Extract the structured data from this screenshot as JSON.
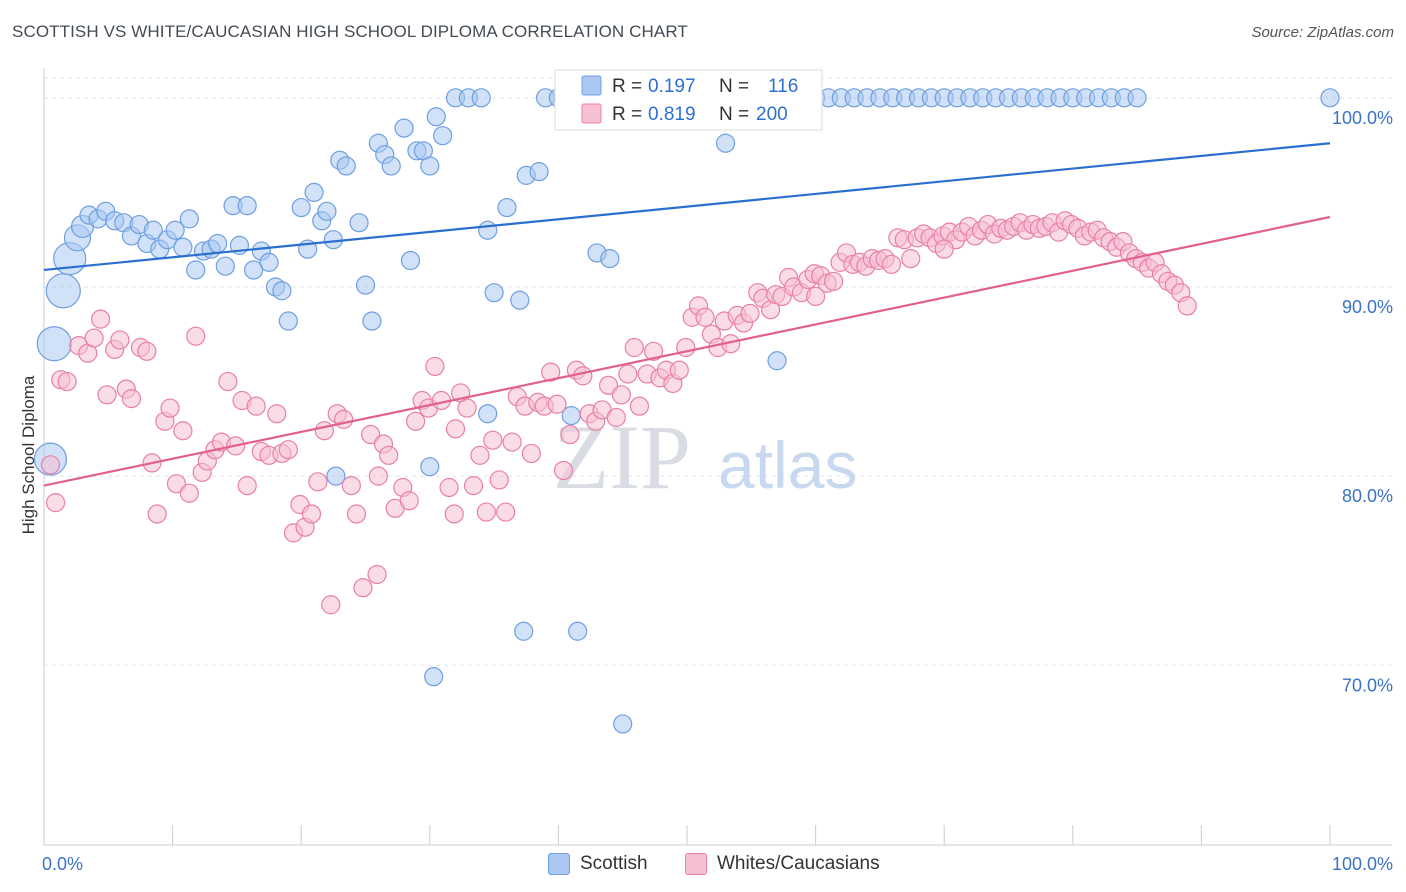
{
  "header": {
    "title": "SCOTTISH VS WHITE/CAUCASIAN HIGH SCHOOL DIPLOMA CORRELATION CHART",
    "source": "Source: ZipAtlas.com"
  },
  "watermark": {
    "zip": "ZIP",
    "atlas": "atlas"
  },
  "legend": {
    "r_label": "R =",
    "n_label": "N =",
    "rows": [
      {
        "r": "0.197",
        "n": "116"
      },
      {
        "r": "0.819",
        "n": "200"
      }
    ]
  },
  "chart_data": {
    "type": "scatter",
    "title": "SCOTTISH VS WHITE/CAUCASIAN HIGH SCHOOL DIPLOMA CORRELATION CHART",
    "ylabel": "High School Diploma",
    "xlabel": "",
    "xlim": [
      0,
      100
    ],
    "ylim": [
      60.5,
      102
    ],
    "x_tick_labels": [
      "0.0%",
      "100.0%"
    ],
    "y_ticks": [
      {
        "value": 100,
        "label": "100.0%"
      },
      {
        "value": 90,
        "label": "90.0%"
      },
      {
        "value": 80,
        "label": "80.0%"
      },
      {
        "value": 70,
        "label": "70.0%"
      }
    ],
    "grid": true,
    "legend_position": "top-center",
    "series": [
      {
        "name": "Scottish",
        "color": "#6f9fe0",
        "fill": "#aac8f3",
        "trend_color": "#2a6fcf",
        "trend": {
          "x": [
            0,
            100
          ],
          "y": [
            90.9,
            97.6
          ]
        },
        "points": [
          [
            0.5,
            80.9
          ],
          [
            0.8,
            87.0
          ],
          [
            1.5,
            89.8
          ],
          [
            2.0,
            91.5
          ],
          [
            2.6,
            92.6
          ],
          [
            3.0,
            93.2
          ],
          [
            3.5,
            93.8
          ],
          [
            4.2,
            93.6
          ],
          [
            4.8,
            94.0
          ],
          [
            5.5,
            93.5
          ],
          [
            6.2,
            93.4
          ],
          [
            6.8,
            92.7
          ],
          [
            7.4,
            93.3
          ],
          [
            8.0,
            92.3
          ],
          [
            8.5,
            93.0
          ],
          [
            9.0,
            92.0
          ],
          [
            9.6,
            92.5
          ],
          [
            10.2,
            93.0
          ],
          [
            10.8,
            92.1
          ],
          [
            11.3,
            93.6
          ],
          [
            11.8,
            90.9
          ],
          [
            12.4,
            91.9
          ],
          [
            13.0,
            92.0
          ],
          [
            13.5,
            92.3
          ],
          [
            14.1,
            91.1
          ],
          [
            14.7,
            94.3
          ],
          [
            15.2,
            92.2
          ],
          [
            15.8,
            94.3
          ],
          [
            16.3,
            90.9
          ],
          [
            16.9,
            91.9
          ],
          [
            17.5,
            91.3
          ],
          [
            18.0,
            90.0
          ],
          [
            18.5,
            89.8
          ],
          [
            19.0,
            88.2
          ],
          [
            20.0,
            94.2
          ],
          [
            20.5,
            92.0
          ],
          [
            21.0,
            95.0
          ],
          [
            21.6,
            93.5
          ],
          [
            22.0,
            94.0
          ],
          [
            22.5,
            92.5
          ],
          [
            23.0,
            96.7
          ],
          [
            23.5,
            96.4
          ],
          [
            24.5,
            93.4
          ],
          [
            25.0,
            90.1
          ],
          [
            25.5,
            88.2
          ],
          [
            26.0,
            97.6
          ],
          [
            26.5,
            97.0
          ],
          [
            27.0,
            96.4
          ],
          [
            28.0,
            98.4
          ],
          [
            28.5,
            91.4
          ],
          [
            29.0,
            97.2
          ],
          [
            29.5,
            97.2
          ],
          [
            30.0,
            96.4
          ],
          [
            30.5,
            99.0
          ],
          [
            31.0,
            98.0
          ],
          [
            32.0,
            100.0
          ],
          [
            33.0,
            100.0
          ],
          [
            34.0,
            100.0
          ],
          [
            34.5,
            93.0
          ],
          [
            35.0,
            89.7
          ],
          [
            36.0,
            94.2
          ],
          [
            37.0,
            89.3
          ],
          [
            37.5,
            95.9
          ],
          [
            38.5,
            96.1
          ],
          [
            39.0,
            100.0
          ],
          [
            40.0,
            100.0
          ],
          [
            41.0,
            100.0
          ],
          [
            43.0,
            91.8
          ],
          [
            44.0,
            91.5
          ],
          [
            45.0,
            100.0
          ],
          [
            47.0,
            100.0
          ],
          [
            48.0,
            100.0
          ],
          [
            49.0,
            100.0
          ],
          [
            50.0,
            100.0
          ],
          [
            51.0,
            100.0
          ],
          [
            52.0,
            100.0
          ],
          [
            53.0,
            97.6
          ],
          [
            54.0,
            100.0
          ],
          [
            55.0,
            100.0
          ],
          [
            56.0,
            100.0
          ],
          [
            57.0,
            86.1
          ],
          [
            58.0,
            100.0
          ],
          [
            59.0,
            100.0
          ],
          [
            60.0,
            100.0
          ],
          [
            61.0,
            100.0
          ],
          [
            62.0,
            100.0
          ],
          [
            63.0,
            100.0
          ],
          [
            64.0,
            100.0
          ],
          [
            65.0,
            100.0
          ],
          [
            66.0,
            100.0
          ],
          [
            67.0,
            100.0
          ],
          [
            68.0,
            100.0
          ],
          [
            69.0,
            100.0
          ],
          [
            70.0,
            100.0
          ],
          [
            71.0,
            100.0
          ],
          [
            72.0,
            100.0
          ],
          [
            73.0,
            100.0
          ],
          [
            74.0,
            100.0
          ],
          [
            75.0,
            100.0
          ],
          [
            76.0,
            100.0
          ],
          [
            77.0,
            100.0
          ],
          [
            78.0,
            100.0
          ],
          [
            79.0,
            100.0
          ],
          [
            80.0,
            100.0
          ],
          [
            81.0,
            100.0
          ],
          [
            82.0,
            100.0
          ],
          [
            83.0,
            100.0
          ],
          [
            84.0,
            100.0
          ],
          [
            85.0,
            100.0
          ],
          [
            100.0,
            100.0
          ],
          [
            30.0,
            80.5
          ],
          [
            22.7,
            80.0
          ],
          [
            34.5,
            83.3
          ],
          [
            41.0,
            83.2
          ],
          [
            41.5,
            71.8
          ],
          [
            37.3,
            71.8
          ],
          [
            30.3,
            69.4
          ],
          [
            45.0,
            66.9
          ]
        ]
      },
      {
        "name": "Whites/Caucasians",
        "color": "#e97fa6",
        "fill": "#f6c0d3",
        "trend_color": "#e2608f",
        "trend": {
          "x": [
            0,
            100
          ],
          "y": [
            79.5,
            93.7
          ]
        },
        "points": [
          [
            0.5,
            80.6
          ],
          [
            0.9,
            78.6
          ],
          [
            1.3,
            85.1
          ],
          [
            1.8,
            85.0
          ],
          [
            2.7,
            86.9
          ],
          [
            3.4,
            86.5
          ],
          [
            3.9,
            87.3
          ],
          [
            4.4,
            88.3
          ],
          [
            4.9,
            84.3
          ],
          [
            5.5,
            86.7
          ],
          [
            5.9,
            87.2
          ],
          [
            6.4,
            84.6
          ],
          [
            6.8,
            84.1
          ],
          [
            7.5,
            86.8
          ],
          [
            8.0,
            86.6
          ],
          [
            8.4,
            80.7
          ],
          [
            8.8,
            78.0
          ],
          [
            9.4,
            82.9
          ],
          [
            9.8,
            83.6
          ],
          [
            10.3,
            79.6
          ],
          [
            10.8,
            82.4
          ],
          [
            11.3,
            79.1
          ],
          [
            11.8,
            87.4
          ],
          [
            12.3,
            80.2
          ],
          [
            12.7,
            80.8
          ],
          [
            13.3,
            81.4
          ],
          [
            13.8,
            81.8
          ],
          [
            14.3,
            85.0
          ],
          [
            14.9,
            81.6
          ],
          [
            15.4,
            84.0
          ],
          [
            15.8,
            79.5
          ],
          [
            16.5,
            83.7
          ],
          [
            16.9,
            81.3
          ],
          [
            17.5,
            81.1
          ],
          [
            18.1,
            83.3
          ],
          [
            18.5,
            81.2
          ],
          [
            19.0,
            81.4
          ],
          [
            19.4,
            77.0
          ],
          [
            19.9,
            78.5
          ],
          [
            20.3,
            77.3
          ],
          [
            20.8,
            78.0
          ],
          [
            21.3,
            79.7
          ],
          [
            21.8,
            82.4
          ],
          [
            22.3,
            73.2
          ],
          [
            22.8,
            83.3
          ],
          [
            23.3,
            83.0
          ],
          [
            23.9,
            79.5
          ],
          [
            24.3,
            78.0
          ],
          [
            24.8,
            74.1
          ],
          [
            25.4,
            82.2
          ],
          [
            25.9,
            74.8
          ],
          [
            26.4,
            81.7
          ],
          [
            26.8,
            81.1
          ],
          [
            27.3,
            78.3
          ],
          [
            27.9,
            79.4
          ],
          [
            28.4,
            78.7
          ],
          [
            28.9,
            82.9
          ],
          [
            29.4,
            84.0
          ],
          [
            29.9,
            83.6
          ],
          [
            30.4,
            85.8
          ],
          [
            30.9,
            84.0
          ],
          [
            31.5,
            79.4
          ],
          [
            31.9,
            78.0
          ],
          [
            32.4,
            84.4
          ],
          [
            32.9,
            83.6
          ],
          [
            33.4,
            79.5
          ],
          [
            33.9,
            81.1
          ],
          [
            34.4,
            78.1
          ],
          [
            34.9,
            81.9
          ],
          [
            35.4,
            79.8
          ],
          [
            35.9,
            78.1
          ],
          [
            36.4,
            81.8
          ],
          [
            36.8,
            84.2
          ],
          [
            37.4,
            83.7
          ],
          [
            37.9,
            81.2
          ],
          [
            38.4,
            83.9
          ],
          [
            38.9,
            83.7
          ],
          [
            39.4,
            85.5
          ],
          [
            39.9,
            83.8
          ],
          [
            40.4,
            80.3
          ],
          [
            40.9,
            82.2
          ],
          [
            41.4,
            85.6
          ],
          [
            41.9,
            85.3
          ],
          [
            42.4,
            83.3
          ],
          [
            42.9,
            82.9
          ],
          [
            43.4,
            83.5
          ],
          [
            43.9,
            84.8
          ],
          [
            44.5,
            83.1
          ],
          [
            44.9,
            84.3
          ],
          [
            45.4,
            85.4
          ],
          [
            45.9,
            86.8
          ],
          [
            46.3,
            83.7
          ],
          [
            46.9,
            85.4
          ],
          [
            47.4,
            86.6
          ],
          [
            47.9,
            85.2
          ],
          [
            48.4,
            85.6
          ],
          [
            48.9,
            84.9
          ],
          [
            49.4,
            85.6
          ],
          [
            49.9,
            86.8
          ],
          [
            50.4,
            88.4
          ],
          [
            50.9,
            89.0
          ],
          [
            51.4,
            88.4
          ],
          [
            51.9,
            87.5
          ],
          [
            52.4,
            86.8
          ],
          [
            52.9,
            88.2
          ],
          [
            53.4,
            87.0
          ],
          [
            53.9,
            88.5
          ],
          [
            54.4,
            88.1
          ],
          [
            54.9,
            88.6
          ],
          [
            55.5,
            89.7
          ],
          [
            55.9,
            89.4
          ],
          [
            56.5,
            88.8
          ],
          [
            56.9,
            89.6
          ],
          [
            57.4,
            89.5
          ],
          [
            57.9,
            90.5
          ],
          [
            58.3,
            90.0
          ],
          [
            58.9,
            89.7
          ],
          [
            59.4,
            90.4
          ],
          [
            59.9,
            90.7
          ],
          [
            60.4,
            90.6
          ],
          [
            60.9,
            90.2
          ],
          [
            61.4,
            90.3
          ],
          [
            61.9,
            91.3
          ],
          [
            62.4,
            91.8
          ],
          [
            62.9,
            91.2
          ],
          [
            63.4,
            91.3
          ],
          [
            63.9,
            91.1
          ],
          [
            64.4,
            91.5
          ],
          [
            64.9,
            91.4
          ],
          [
            65.4,
            91.5
          ],
          [
            65.9,
            91.2
          ],
          [
            66.4,
            92.6
          ],
          [
            66.9,
            92.5
          ],
          [
            67.4,
            91.5
          ],
          [
            67.9,
            92.6
          ],
          [
            68.4,
            92.8
          ],
          [
            68.9,
            92.6
          ],
          [
            69.4,
            92.3
          ],
          [
            69.9,
            92.7
          ],
          [
            70.4,
            92.9
          ],
          [
            70.9,
            92.5
          ],
          [
            71.4,
            92.9
          ],
          [
            71.9,
            93.2
          ],
          [
            72.4,
            92.7
          ],
          [
            72.9,
            93.0
          ],
          [
            73.4,
            93.3
          ],
          [
            73.9,
            92.8
          ],
          [
            74.4,
            93.1
          ],
          [
            74.9,
            93.0
          ],
          [
            75.4,
            93.2
          ],
          [
            75.9,
            93.4
          ],
          [
            76.4,
            93.0
          ],
          [
            76.9,
            93.3
          ],
          [
            77.4,
            93.1
          ],
          [
            77.9,
            93.2
          ],
          [
            78.4,
            93.4
          ],
          [
            78.9,
            92.9
          ],
          [
            79.4,
            93.5
          ],
          [
            79.9,
            93.3
          ],
          [
            80.4,
            93.1
          ],
          [
            80.9,
            92.7
          ],
          [
            81.4,
            92.9
          ],
          [
            81.9,
            93.0
          ],
          [
            82.4,
            92.6
          ],
          [
            82.9,
            92.4
          ],
          [
            83.4,
            92.1
          ],
          [
            83.9,
            92.4
          ],
          [
            84.4,
            91.8
          ],
          [
            84.9,
            91.5
          ],
          [
            85.4,
            91.3
          ],
          [
            85.9,
            91.0
          ],
          [
            86.4,
            91.3
          ],
          [
            86.9,
            90.7
          ],
          [
            87.4,
            90.3
          ],
          [
            87.9,
            90.1
          ],
          [
            88.4,
            89.7
          ],
          [
            88.9,
            89.0
          ],
          [
            26.0,
            80.0
          ],
          [
            32.0,
            82.5
          ],
          [
            60.0,
            89.5
          ],
          [
            70.0,
            92.0
          ]
        ]
      }
    ]
  },
  "bottom_legend": [
    {
      "label": "Scottish"
    },
    {
      "label": "Whites/Caucasians"
    }
  ]
}
